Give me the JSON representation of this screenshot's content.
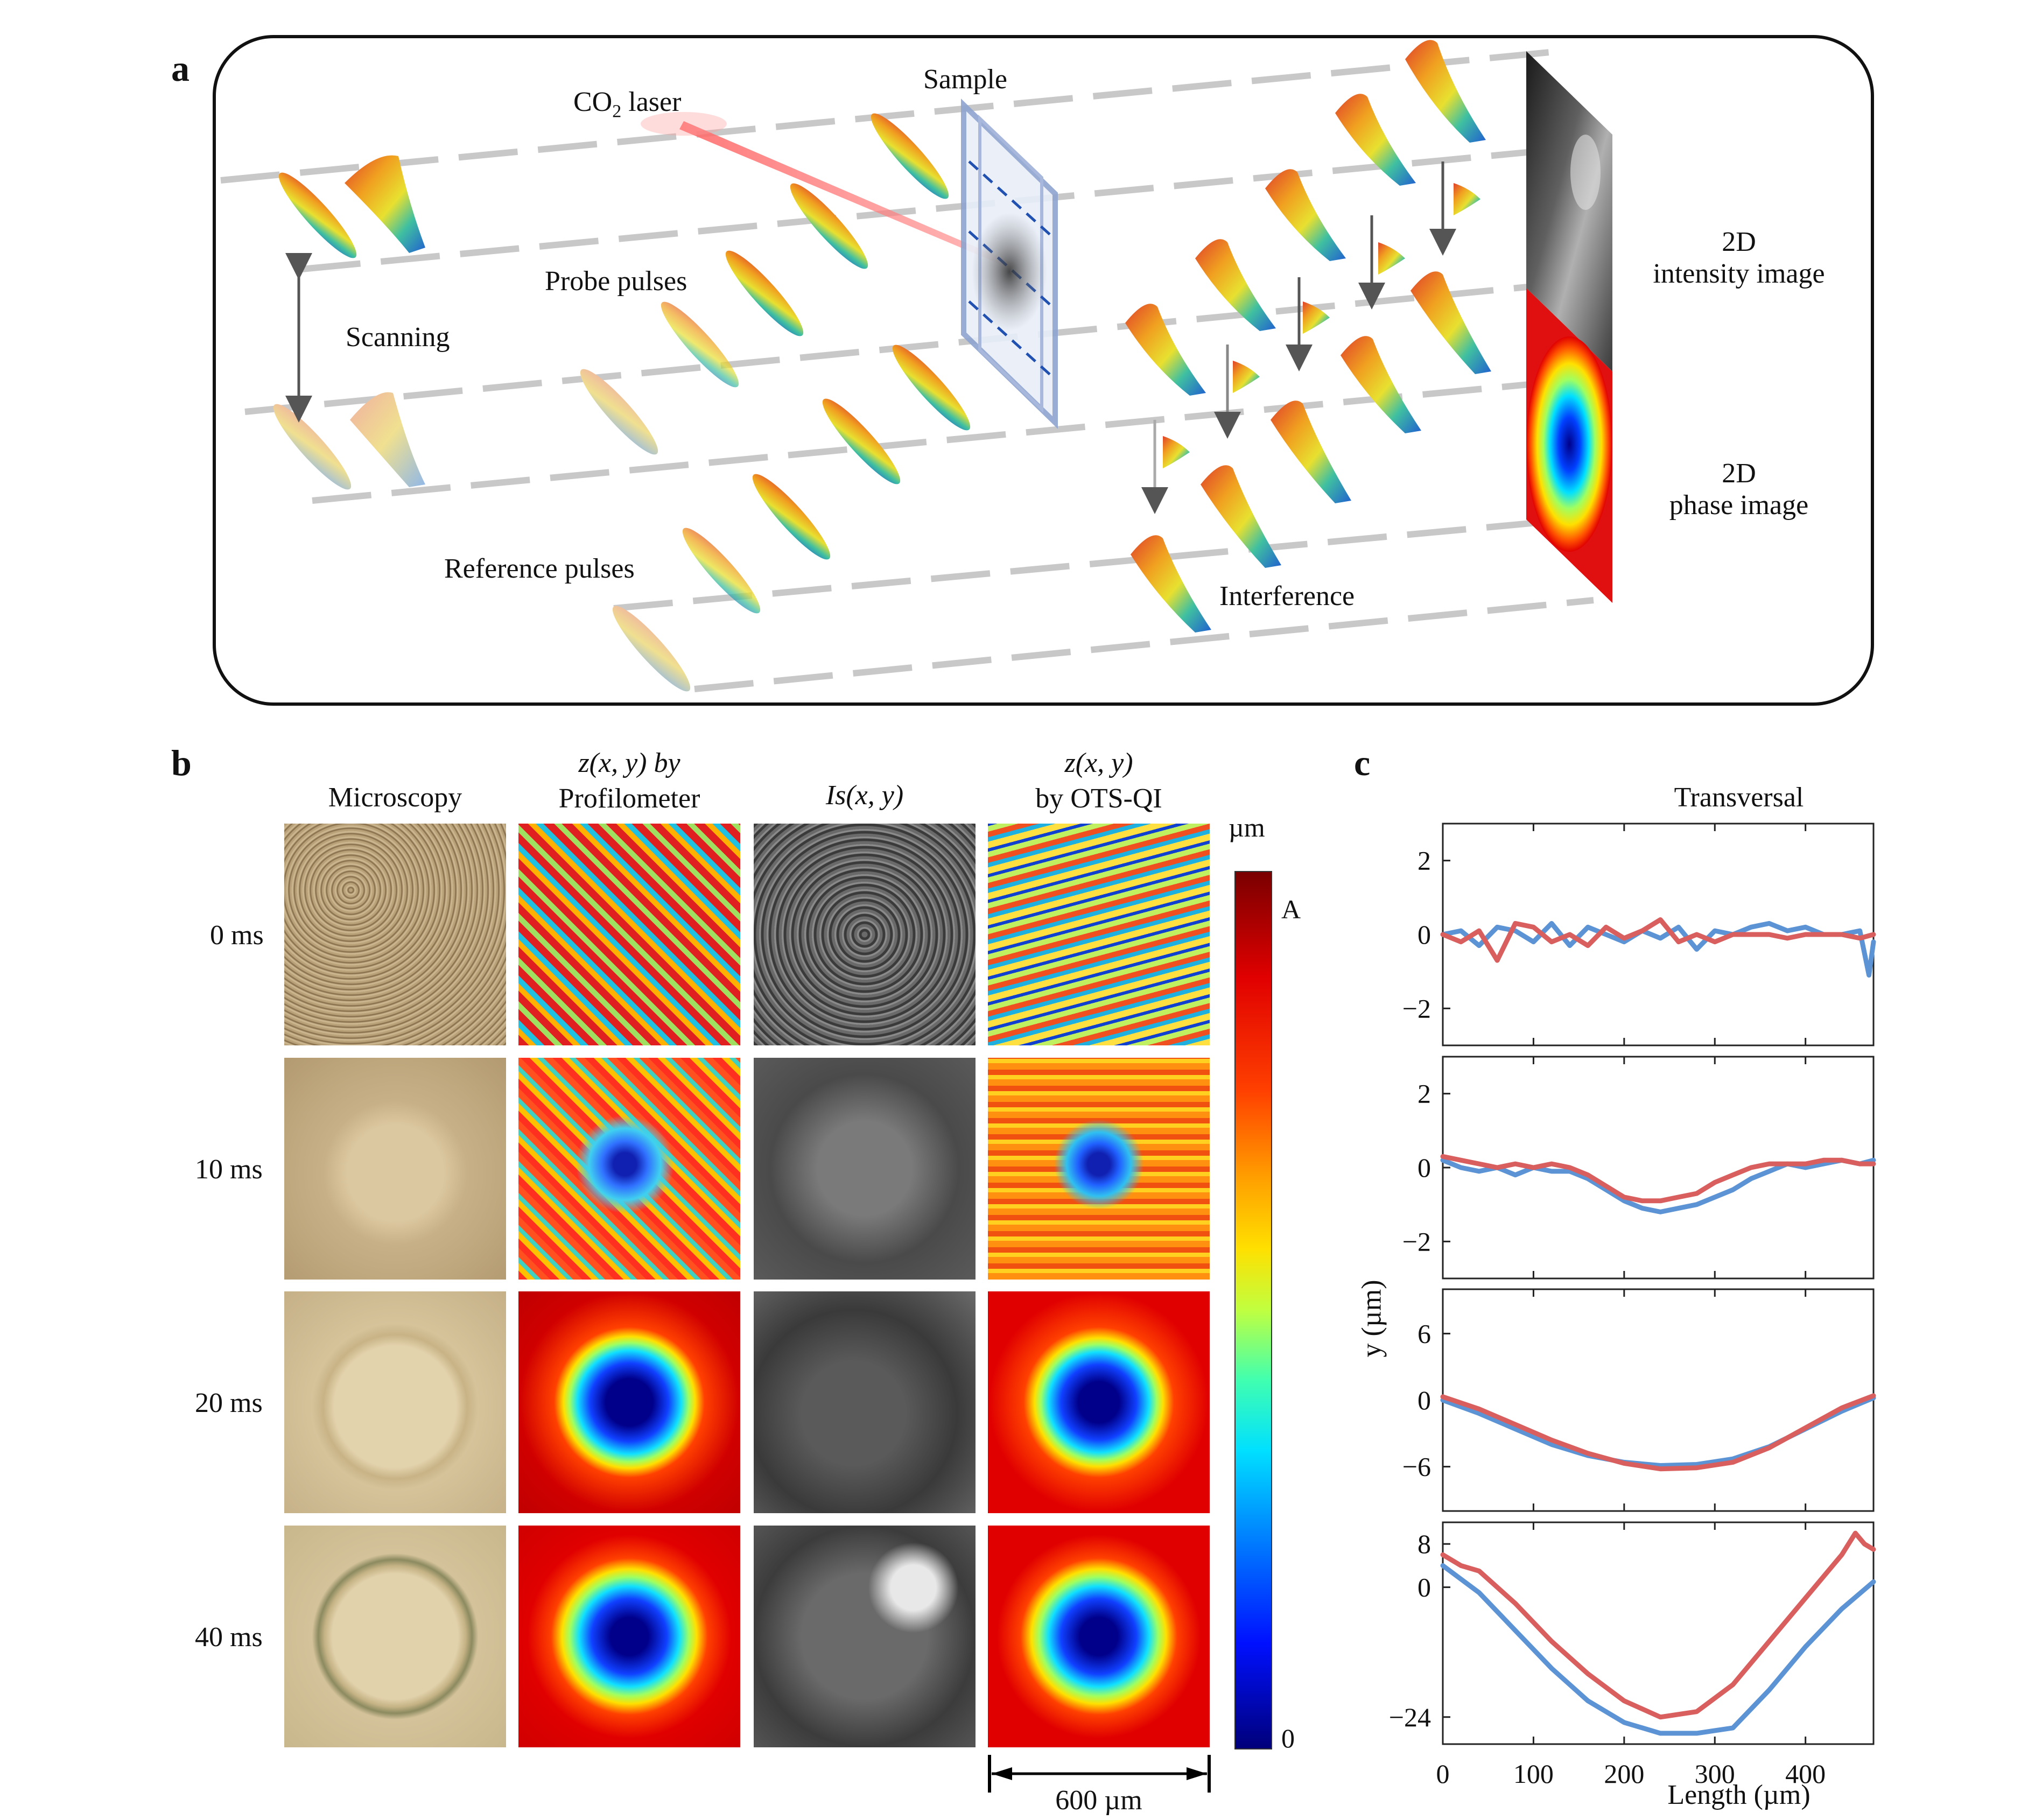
{
  "panel_labels": {
    "a": "a",
    "b": "b",
    "c": "c"
  },
  "panel_a": {
    "co2_laser_prefix": "CO",
    "co2_laser_sub": "2",
    "co2_laser_suffix": " laser",
    "sample": "Sample",
    "probe_pulses": "Probe pulses",
    "scanning": "Scanning",
    "reference_pulses": "Reference pulses",
    "interference": "Interference",
    "intensity_line1": "2D",
    "intensity_line2": "intensity image",
    "phase_line1": "2D",
    "phase_line2": "phase image"
  },
  "panel_b": {
    "col_microscopy": "Microscopy",
    "col_profilometer_line1": "z(x, y) by",
    "col_profilometer_line2": "Profilometer",
    "col_intensity": "Is(x, y)",
    "col_otsqi_line1": "z(x, y)",
    "col_otsqi_line2": "by OTS-QI",
    "rows": [
      "0 ms",
      "10 ms",
      "20 ms",
      "40 ms"
    ],
    "colorbar_unit": "µm",
    "colorbar_top": "A",
    "colorbar_bottom": "0",
    "scale_bar": "600 µm"
  },
  "chart_data": {
    "type": "line",
    "title": "Transversal",
    "xlabel": "Length (µm)",
    "ylabel": "y (µm)",
    "xlim": [
      0,
      475
    ],
    "x_ticks": [
      "0",
      "100",
      "200",
      "300",
      "400"
    ],
    "subplots": [
      {
        "ylim": [
          -3,
          3
        ],
        "y_ticks": [
          "2",
          "0",
          "−2"
        ],
        "series": [
          {
            "color": "#5b93d4",
            "x": [
              0,
              20,
              40,
              60,
              80,
              100,
              120,
              140,
              160,
              180,
              200,
              220,
              240,
              260,
              280,
              300,
              320,
              340,
              360,
              380,
              400,
              420,
              440,
              460,
              470,
              475
            ],
            "y": [
              0,
              0.1,
              -0.3,
              0.2,
              0.1,
              -0.2,
              0.3,
              -0.3,
              0.2,
              0.0,
              -0.2,
              0.1,
              -0.1,
              0.2,
              -0.4,
              0.1,
              0.0,
              0.2,
              0.3,
              0.1,
              0.2,
              0.0,
              0.0,
              0.1,
              -1.1,
              -0.2
            ]
          },
          {
            "color": "#d95f5f",
            "x": [
              0,
              20,
              40,
              60,
              80,
              100,
              120,
              140,
              160,
              180,
              200,
              220,
              240,
              260,
              280,
              300,
              320,
              340,
              360,
              380,
              400,
              420,
              440,
              460,
              475
            ],
            "y": [
              0,
              -0.2,
              0.1,
              -0.7,
              0.3,
              0.2,
              -0.2,
              0.0,
              -0.3,
              0.2,
              -0.1,
              0.1,
              0.4,
              -0.2,
              0.0,
              -0.2,
              0.0,
              0.0,
              0.0,
              -0.1,
              0.0,
              0.0,
              0.0,
              -0.1,
              0.0
            ]
          }
        ]
      },
      {
        "ylim": [
          -3,
          3
        ],
        "y_ticks": [
          "2",
          "0",
          "−2"
        ],
        "series": [
          {
            "color": "#5b93d4",
            "x": [
              0,
              20,
              40,
              60,
              80,
              100,
              120,
              140,
              160,
              180,
              200,
              220,
              240,
              260,
              280,
              300,
              320,
              340,
              360,
              380,
              400,
              420,
              440,
              460,
              475
            ],
            "y": [
              0.2,
              0.0,
              -0.1,
              0.0,
              -0.2,
              0.0,
              -0.1,
              -0.1,
              -0.3,
              -0.6,
              -0.9,
              -1.1,
              -1.2,
              -1.1,
              -1.0,
              -0.8,
              -0.6,
              -0.3,
              -0.1,
              0.1,
              0.0,
              0.1,
              0.2,
              0.1,
              0.2
            ]
          },
          {
            "color": "#d95f5f",
            "x": [
              0,
              20,
              40,
              60,
              80,
              100,
              120,
              140,
              160,
              180,
              200,
              220,
              240,
              260,
              280,
              300,
              320,
              340,
              360,
              380,
              400,
              420,
              440,
              460,
              475
            ],
            "y": [
              0.3,
              0.2,
              0.1,
              0.0,
              0.1,
              0.0,
              0.1,
              0.0,
              -0.2,
              -0.5,
              -0.8,
              -0.9,
              -0.9,
              -0.8,
              -0.7,
              -0.4,
              -0.2,
              0.0,
              0.1,
              0.1,
              0.1,
              0.2,
              0.2,
              0.1,
              0.1
            ]
          }
        ]
      },
      {
        "ylim": [
          -10,
          10
        ],
        "y_ticks": [
          "6",
          "0",
          "−6"
        ],
        "series": [
          {
            "color": "#5b93d4",
            "x": [
              0,
              40,
              80,
              120,
              160,
              200,
              240,
              280,
              320,
              360,
              400,
              440,
              475
            ],
            "y": [
              0,
              -1.2,
              -2.6,
              -4.0,
              -5.0,
              -5.6,
              -5.9,
              -5.8,
              -5.3,
              -4.2,
              -2.6,
              -1.0,
              0.2
            ]
          },
          {
            "color": "#d95f5f",
            "x": [
              0,
              40,
              80,
              120,
              160,
              200,
              240,
              280,
              320,
              360,
              400,
              440,
              475
            ],
            "y": [
              0.3,
              -0.8,
              -2.2,
              -3.6,
              -4.8,
              -5.7,
              -6.2,
              -6.1,
              -5.6,
              -4.3,
              -2.5,
              -0.7,
              0.4
            ]
          }
        ]
      },
      {
        "ylim": [
          -29,
          12
        ],
        "y_ticks": [
          "8",
          "0",
          "−24"
        ],
        "series": [
          {
            "color": "#5b93d4",
            "x": [
              0,
              40,
              80,
              120,
              160,
              200,
              240,
              280,
              320,
              360,
              400,
              440,
              475
            ],
            "y": [
              4,
              -1,
              -8,
              -15,
              -21,
              -25,
              -27,
              -27,
              -26,
              -19,
              -11,
              -4,
              1
            ]
          },
          {
            "color": "#d95f5f",
            "x": [
              0,
              20,
              40,
              80,
              120,
              160,
              200,
              240,
              280,
              320,
              360,
              400,
              440,
              455,
              465,
              475
            ],
            "y": [
              6,
              4,
              3,
              -3,
              -10,
              -16,
              -21,
              -24,
              -23,
              -18,
              -10,
              -2,
              6,
              10,
              8,
              7
            ]
          }
        ]
      }
    ]
  }
}
